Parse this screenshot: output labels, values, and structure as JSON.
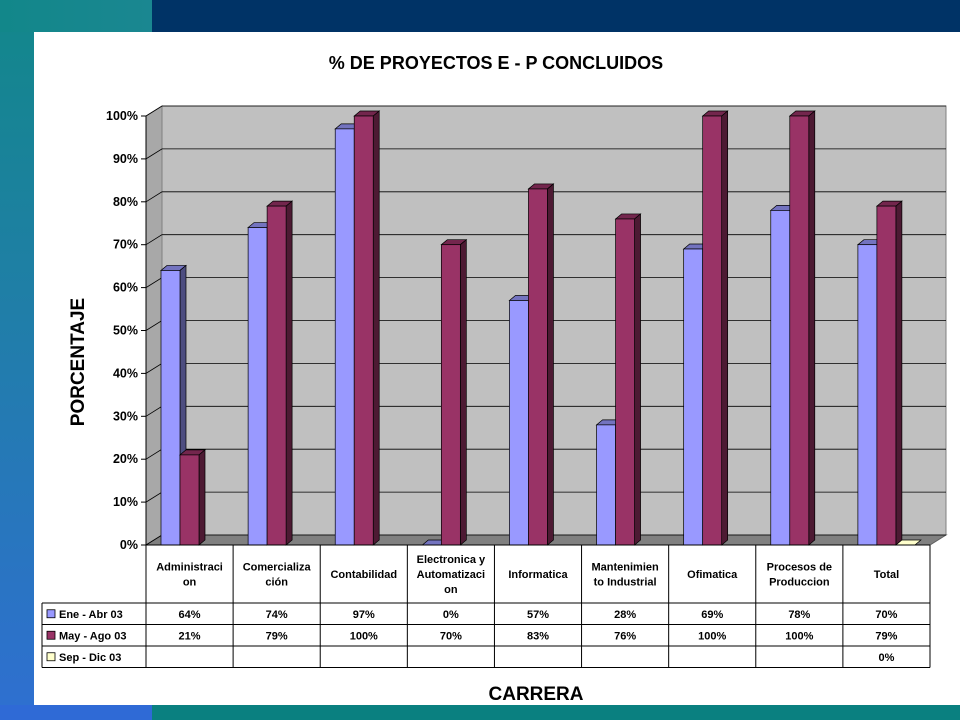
{
  "chart_data": {
    "type": "bar",
    "title": "% DE PROYECTOS E - P CONCLUIDOS",
    "xlabel": "CARRERA",
    "ylabel": "PORCENTAJE",
    "ylim": [
      0,
      100
    ],
    "yticks": [
      "0%",
      "10%",
      "20%",
      "30%",
      "40%",
      "50%",
      "60%",
      "70%",
      "80%",
      "90%",
      "100%"
    ],
    "categories": [
      [
        "Administraci",
        "on"
      ],
      [
        "Comercializa",
        "ción"
      ],
      [
        "Contabilidad"
      ],
      [
        "Electronica y",
        "Automatizaci",
        "on"
      ],
      [
        "Informatica"
      ],
      [
        "Mantenimien",
        "to Industrial"
      ],
      [
        "Ofimatica"
      ],
      [
        "Procesos de",
        "Produccion"
      ],
      [
        "Total"
      ]
    ],
    "series": [
      {
        "name": "Ene - Abr 03",
        "color": "#9999ff",
        "values": [
          64,
          74,
          97,
          0,
          57,
          28,
          69,
          78,
          70
        ],
        "labels": [
          "64%",
          "74%",
          "97%",
          "0%",
          "57%",
          "28%",
          "69%",
          "78%",
          "70%"
        ]
      },
      {
        "name": "May - Ago 03",
        "color": "#993366",
        "values": [
          21,
          79,
          100,
          70,
          83,
          76,
          100,
          100,
          79
        ],
        "labels": [
          "21%",
          "79%",
          "100%",
          "70%",
          "83%",
          "76%",
          "100%",
          "100%",
          "79%"
        ]
      },
      {
        "name": "Sep - Dic 03",
        "color": "#ffffcc",
        "values": [
          null,
          null,
          null,
          null,
          null,
          null,
          null,
          null,
          0
        ],
        "labels": [
          "",
          "",
          "",
          "",
          "",
          "",
          "",
          "",
          "0%"
        ]
      }
    ],
    "grid": true,
    "legend": "data-table"
  }
}
